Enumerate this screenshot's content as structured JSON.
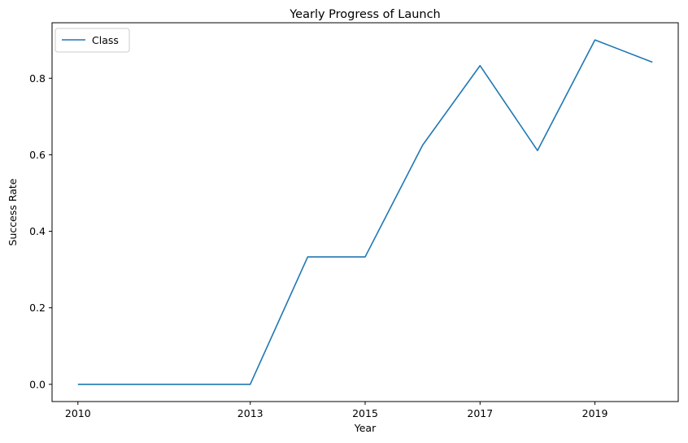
{
  "chart_data": {
    "type": "line",
    "title": "Yearly Progress of Launch",
    "xlabel": "Year",
    "ylabel": "Success Rate",
    "x": [
      "2010",
      "2012",
      "2013",
      "2014",
      "2015",
      "2016",
      "2017",
      "2018",
      "2019",
      "2020"
    ],
    "x_tick_labels": [
      "2010",
      "2013",
      "2015",
      "2017",
      "2019"
    ],
    "series": [
      {
        "name": "Class",
        "color": "#1f77b4",
        "values": [
          0.0,
          0.0,
          0.0,
          0.333,
          0.333,
          0.625,
          0.833,
          0.611,
          0.9,
          0.842
        ]
      }
    ],
    "y_ticks": [
      "0.0",
      "0.2",
      "0.4",
      "0.6",
      "0.8"
    ],
    "ylim": [
      -0.045,
      0.945
    ],
    "grid": false,
    "legend": "top-left"
  }
}
